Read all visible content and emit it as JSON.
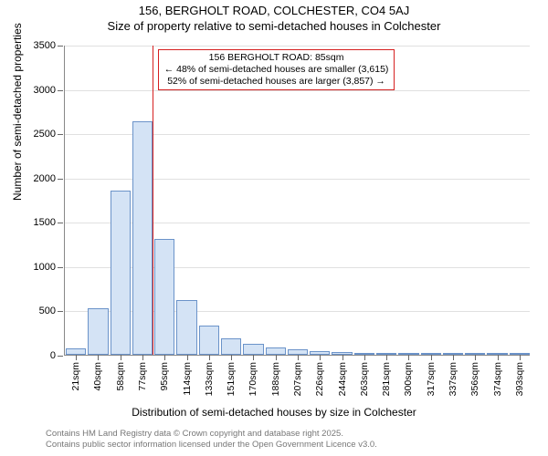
{
  "title": {
    "line1": "156, BERGHOLT ROAD, COLCHESTER, CO4 5AJ",
    "line2": "Size of property relative to semi-detached houses in Colchester"
  },
  "chart": {
    "type": "histogram",
    "ylim": [
      0,
      3500
    ],
    "ytick_step": 500,
    "yticks": [
      0,
      500,
      1000,
      1500,
      2000,
      2500,
      3000,
      3500
    ],
    "ylabel": "Number of semi-detached properties",
    "xlabel": "Distribution of semi-detached houses by size in Colchester",
    "categories": [
      "21sqm",
      "40sqm",
      "58sqm",
      "77sqm",
      "95sqm",
      "114sqm",
      "133sqm",
      "151sqm",
      "170sqm",
      "188sqm",
      "207sqm",
      "226sqm",
      "244sqm",
      "263sqm",
      "281sqm",
      "300sqm",
      "317sqm",
      "337sqm",
      "356sqm",
      "374sqm",
      "393sqm"
    ],
    "values": [
      70,
      530,
      1850,
      2640,
      1310,
      620,
      330,
      190,
      120,
      85,
      60,
      45,
      35,
      25,
      10,
      5,
      5,
      3,
      2,
      2,
      1
    ],
    "bar_fill": "#d4e3f5",
    "bar_stroke": "#6b93c9",
    "grid_color": "#e0e0e0",
    "axis_color": "#888888",
    "background_color": "#ffffff",
    "label_fontsize": 12,
    "tick_fontsize": 11,
    "xtick_fontsize": 10.5
  },
  "marker": {
    "position_sqm": 85,
    "line_color": "#d62020",
    "callout_border": "#d62020",
    "callout_lines": [
      "156 BERGHOLT ROAD: 85sqm",
      "← 48% of semi-detached houses are smaller (3,615)",
      "52% of semi-detached houses are larger (3,857) →"
    ]
  },
  "attribution": {
    "line1": "Contains HM Land Registry data © Crown copyright and database right 2025.",
    "line2": "Contains public sector information licensed under the Open Government Licence v3.0."
  }
}
